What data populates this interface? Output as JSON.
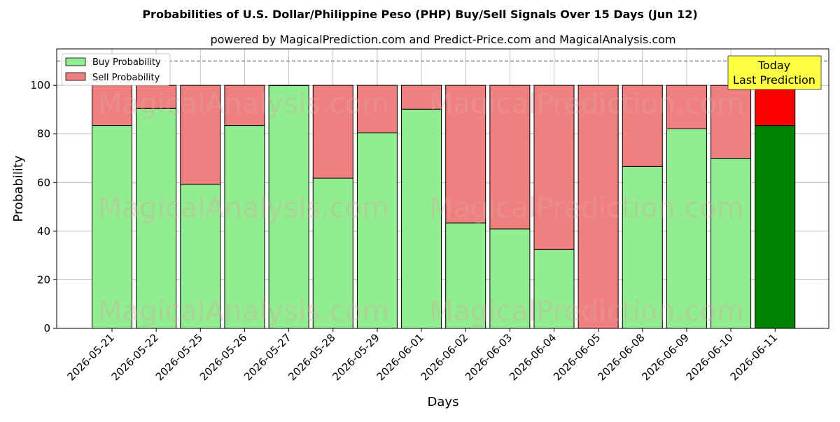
{
  "title": "Probabilities of U.S. Dollar/Philippine Peso (PHP) Buy/Sell Signals Over 15 Days (Jun 12)",
  "subtitle": "powered by MagicalPrediction.com and Predict-Price.com and MagicalAnalysis.com",
  "watermarks": [
    "MagicalAnalysis.com",
    "MagicalPrediction.com"
  ],
  "annotation": {
    "line1": "Today",
    "line2": "Last Prediction"
  },
  "colors": {
    "buy": "#90ee90",
    "sell": "#f08080",
    "buy_today": "#008000",
    "sell_today": "#ff0000",
    "annotation_bg": "#ffff44"
  },
  "chart_data": {
    "type": "bar",
    "stacked": true,
    "xlabel": "Days",
    "ylabel": "Probability",
    "ylim": [
      0,
      115
    ],
    "yticks": [
      0,
      20,
      40,
      60,
      80,
      100
    ],
    "reference_line": 110,
    "grid": true,
    "legend_position": "top-left",
    "categories": [
      "2026-05-21",
      "2026-05-22",
      "2026-05-25",
      "2026-05-26",
      "2026-05-27",
      "2026-05-28",
      "2026-05-29",
      "2026-06-01",
      "2026-06-02",
      "2026-06-03",
      "2026-06-04",
      "2026-06-05",
      "2026-06-08",
      "2026-06-09",
      "2026-06-10",
      "2026-06-11"
    ],
    "series": [
      {
        "name": "Buy Probability",
        "values": [
          83.5,
          90.5,
          59.3,
          83.5,
          99.9,
          61.8,
          80.5,
          90.2,
          43.4,
          40.9,
          32.4,
          0,
          66.6,
          82.1,
          70.0,
          83.5
        ]
      },
      {
        "name": "Sell Probability",
        "values": [
          16.5,
          9.5,
          40.7,
          16.5,
          0.1,
          38.2,
          19.5,
          9.8,
          56.6,
          59.1,
          67.6,
          100,
          33.4,
          17.9,
          30.0,
          16.5
        ]
      }
    ],
    "highlight_index": 15
  }
}
